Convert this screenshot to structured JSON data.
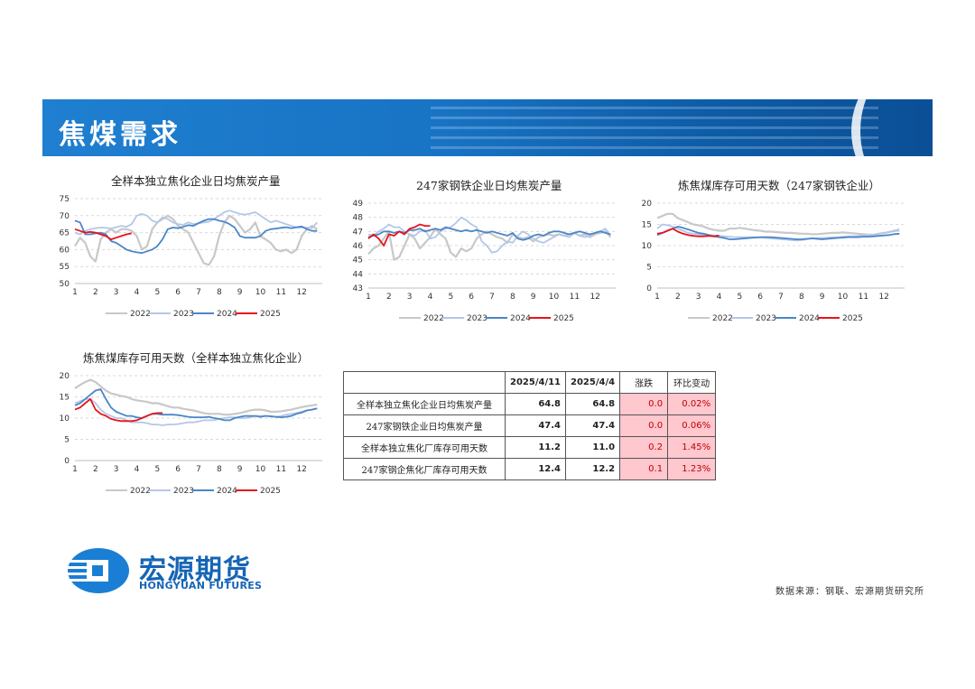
{
  "header": {
    "title": "焦煤需求"
  },
  "legend_labels": [
    "2022",
    "2023",
    "2024",
    "2025"
  ],
  "colors": {
    "2022": "#c8c8c8",
    "2023": "#b4c7e7",
    "2024": "#4a86c8",
    "2025": "#e8131a"
  },
  "chart_data": [
    {
      "type": "line",
      "title": "全样本独立焦化企业日均焦炭产量",
      "xticks": [
        "1",
        "2",
        "3",
        "4",
        "5",
        "6",
        "7",
        "8",
        "9",
        "10",
        "11",
        "12"
      ],
      "ylim": [
        50,
        75
      ],
      "yticks": [
        50,
        55,
        60,
        65,
        70,
        75
      ],
      "series": [
        {
          "name": "2022",
          "values": [
            61,
            63.5,
            62,
            58,
            56.5,
            63,
            65,
            66,
            65,
            66,
            66,
            65.5,
            64,
            60,
            61,
            66,
            68,
            69,
            70,
            69,
            67,
            66,
            65,
            62,
            59,
            56,
            55.5,
            58,
            64,
            68,
            70,
            69,
            67,
            65,
            66,
            68,
            64,
            63,
            62,
            60,
            59.5,
            60,
            59,
            60,
            64,
            66,
            67,
            66
          ]
        },
        {
          "name": "2023",
          "values": [
            65,
            64.5,
            65.5,
            66,
            66.3,
            66.5,
            66.4,
            66.2,
            66.6,
            67,
            66.7,
            67.5,
            70,
            70.5,
            70,
            68.5,
            68,
            69.5,
            69,
            68,
            67.5,
            67.3,
            68,
            67.5,
            67.7,
            68,
            68.2,
            69,
            70,
            71,
            71.5,
            71,
            70.5,
            70.3,
            70.6,
            71,
            70,
            69,
            68,
            68.5,
            68,
            67.5,
            67,
            66.5,
            66.5,
            66.5,
            66.3,
            68
          ]
        },
        {
          "name": "2024",
          "values": [
            68.5,
            68,
            64.5,
            64.5,
            64.8,
            65,
            64.5,
            62.5,
            62,
            61,
            60,
            59.5,
            59.2,
            59,
            59.5,
            60,
            61,
            63,
            66,
            66.5,
            66.3,
            66.7,
            67.2,
            67,
            67.8,
            68.5,
            69,
            69,
            68.5,
            68.2,
            67.5,
            66.5,
            64,
            63.5,
            63.5,
            63.5,
            64,
            65.5,
            66,
            66.2,
            66.4,
            66.6,
            66.3,
            66.6,
            66.8,
            66,
            65.5,
            65.5
          ]
        },
        {
          "name": "2025",
          "values": [
            66,
            65.5,
            65,
            65.2,
            65,
            64.5,
            64,
            63,
            63.5,
            64,
            64.5,
            64.8
          ]
        }
      ]
    },
    {
      "type": "line",
      "title": "247家钢铁企业日均焦炭产量",
      "xticks": [
        "1",
        "2",
        "3",
        "4",
        "5",
        "6",
        "7",
        "8",
        "9",
        "10",
        "11",
        "12"
      ],
      "ylim": [
        43,
        49
      ],
      "yticks": [
        43,
        44,
        45,
        46,
        47,
        48,
        49
      ],
      "series": [
        {
          "name": "2022",
          "values": [
            45.4,
            45.8,
            46,
            46.5,
            47,
            45,
            45.2,
            46,
            46.8,
            46.5,
            45.8,
            46.2,
            46.6,
            47.2,
            46.8,
            46.5,
            45.5,
            45.2,
            45.8,
            45.6,
            45.8,
            46.5,
            46.8,
            47,
            46.8,
            46.6,
            46.5,
            46.2,
            46.8,
            46.6,
            46.5,
            46.6,
            46.3,
            46.6,
            46.7,
            46.8,
            46.7,
            46.8,
            46.7,
            46.8,
            46.9,
            46.7,
            46.8,
            46.6,
            46.8,
            46.9,
            47,
            46.6
          ]
        },
        {
          "name": "2023",
          "values": [
            46.8,
            46.7,
            47,
            47.2,
            47.5,
            47.3,
            47.3,
            47,
            46.8,
            46.7,
            47,
            47.1,
            46.5,
            46.6,
            47,
            47.2,
            47.3,
            47.6,
            48,
            47.8,
            47.5,
            47.3,
            46.3,
            46,
            45.5,
            45.6,
            46,
            46.3,
            46.2,
            46.7,
            47,
            46.8,
            46.5,
            46.3,
            46.2,
            46.4,
            46.6,
            46.8,
            46.7,
            46.6,
            46.9,
            46.7,
            46.6,
            46.7,
            46.9,
            47,
            47.2,
            46.7
          ]
        },
        {
          "name": "2024",
          "values": [
            46.6,
            46.7,
            46.8,
            47,
            47,
            46.9,
            47,
            46.9,
            47.1,
            47.1,
            47.2,
            47,
            47.1,
            47.2,
            47.1,
            47.3,
            47.2,
            47.1,
            47,
            47.1,
            47,
            47.1,
            47,
            46.9,
            47,
            46.9,
            46.8,
            46.7,
            46.9,
            46.5,
            46.4,
            46.5,
            46.7,
            46.8,
            46.7,
            46.9,
            47,
            47,
            46.9,
            46.8,
            46.9,
            47,
            46.9,
            46.8,
            46.9,
            47,
            46.9,
            46.8
          ]
        },
        {
          "name": "2025",
          "values": [
            46.5,
            46.8,
            46.5,
            46,
            46.8,
            46.7,
            47,
            46.8,
            47.2,
            47.3,
            47.5,
            47.4,
            47.4
          ]
        }
      ]
    },
    {
      "type": "line",
      "title": "炼焦煤库存可用天数（247家钢铁企业）",
      "xticks": [
        "1",
        "2",
        "3",
        "4",
        "5",
        "6",
        "7",
        "8",
        "9",
        "10",
        "11",
        "12"
      ],
      "ylim": [
        0,
        20
      ],
      "yticks": [
        0,
        5,
        10,
        15,
        20
      ],
      "series": [
        {
          "name": "2022",
          "values": [
            16.5,
            17,
            17.5,
            17.5,
            16.5,
            16,
            15.5,
            15,
            14.8,
            14.5,
            14,
            13.7,
            13.5,
            13.5,
            14,
            14,
            14.2,
            14,
            13.8,
            13.6,
            13.5,
            13.3,
            13.3,
            13.2,
            13.1,
            13,
            13,
            12.9,
            12.8,
            12.8,
            12.7,
            12.7,
            12.8,
            12.9,
            13,
            13,
            13.1,
            13,
            12.9,
            12.8,
            12.7,
            12.6,
            12.6,
            12.8,
            13,
            13.2,
            13.5,
            13.8
          ]
        },
        {
          "name": "2023",
          "values": [
            14,
            15,
            14.8,
            14.5,
            14,
            13.5,
            13,
            12.8,
            12.7,
            12.6,
            12.5,
            12.4,
            12.3,
            12.2,
            12.1,
            12,
            12,
            12,
            12,
            12,
            11.9,
            11.8,
            11.7,
            11.6,
            11.5,
            11.4,
            11.3,
            11.2,
            11.3,
            11.5,
            11.7,
            11.8,
            11.8,
            11.9,
            12,
            12,
            12.1,
            12.2,
            12.2,
            12.3,
            12.4,
            12.5,
            12.6,
            12.8,
            13,
            13.2,
            13.4,
            13.5
          ]
        },
        {
          "name": "2024",
          "values": [
            12.5,
            13,
            13.5,
            14,
            14.5,
            14.2,
            13.8,
            13.4,
            13,
            12.8,
            12.5,
            12.2,
            12,
            11.8,
            11.5,
            11.5,
            11.6,
            11.7,
            11.8,
            11.9,
            12,
            12,
            12,
            11.9,
            11.8,
            11.7,
            11.6,
            11.5,
            11.5,
            11.6,
            11.7,
            11.6,
            11.5,
            11.6,
            11.7,
            11.8,
            11.9,
            12,
            12,
            12,
            12.1,
            12.1,
            12.2,
            12.3,
            12.4,
            12.5,
            12.7,
            12.8
          ]
        },
        {
          "name": "2025",
          "values": [
            12.8,
            13,
            13.5,
            14,
            13.3,
            12.8,
            12.5,
            12.3,
            12.2,
            12.2,
            12.3,
            12.2,
            12.4
          ]
        }
      ]
    },
    {
      "type": "line",
      "title": "炼焦煤库存可用天数（全样本独立焦化企业）",
      "xticks": [
        "1",
        "2",
        "3",
        "4",
        "5",
        "6",
        "7",
        "8",
        "9",
        "10",
        "11",
        "12"
      ],
      "ylim": [
        0,
        20
      ],
      "yticks": [
        0,
        5,
        10,
        15,
        20
      ],
      "series": [
        {
          "name": "2022",
          "values": [
            17,
            17.8,
            18.5,
            19,
            18.5,
            17.5,
            16.5,
            15.8,
            15.5,
            15.2,
            15,
            14.5,
            14.2,
            14,
            13.8,
            13.5,
            13.5,
            13.2,
            12.8,
            12.5,
            12.5,
            12.2,
            12,
            11.8,
            11.5,
            11.2,
            11,
            11,
            11,
            10.8,
            10.8,
            11,
            11.2,
            11.5,
            11.8,
            12,
            12,
            11.8,
            11.5,
            11.5,
            11.6,
            11.8,
            12,
            12.3,
            12.6,
            12.8,
            13,
            13.2
          ]
        },
        {
          "name": "2023",
          "values": [
            13.5,
            14,
            14.5,
            14.5,
            13.5,
            12,
            11,
            10.5,
            10,
            10,
            9.5,
            9,
            9,
            9,
            8.8,
            8.5,
            8.5,
            8.3,
            8.5,
            8.5,
            8.6,
            8.8,
            9,
            9,
            9.2,
            9.5,
            9.5,
            9.5,
            9.8,
            10,
            10.2,
            10.2,
            10,
            10,
            10.2,
            10.5,
            10.5,
            10.5,
            10.5,
            10.3,
            10.5,
            10.8,
            11,
            11.2,
            11.5,
            11.8,
            12,
            12.3
          ]
        },
        {
          "name": "2024",
          "values": [
            13,
            13.5,
            14.5,
            15.5,
            16.5,
            16.8,
            14.5,
            12.5,
            11.5,
            11,
            10.5,
            10.5,
            10.2,
            10,
            10.5,
            11,
            11,
            10.8,
            10.8,
            10.8,
            10.7,
            10.5,
            10.3,
            10.2,
            10.2,
            10.2,
            10.3,
            10,
            9.8,
            9.5,
            9.5,
            10,
            10.3,
            10.5,
            10.5,
            10.5,
            10.3,
            10.5,
            10.4,
            10.3,
            10.2,
            10.3,
            10.5,
            11,
            11.3,
            11.8,
            12,
            12.3
          ]
        },
        {
          "name": "2025",
          "values": [
            12,
            12.5,
            13.5,
            14.5,
            12,
            11,
            10.5,
            9.8,
            9.5,
            9.3,
            9.3,
            9.3,
            9.5,
            10,
            10.5,
            11,
            11.2,
            11.2
          ]
        }
      ]
    }
  ],
  "summary_table": {
    "headers": [
      "",
      "2025/4/11",
      "2025/4/4",
      "涨跌",
      "环比变动"
    ],
    "rows": [
      {
        "name": "全样本独立焦化企业日均焦炭产量",
        "current": "64.8",
        "previous": "64.8",
        "change": "0.0",
        "pct": "0.02%"
      },
      {
        "name": "247家钢铁企业日均焦炭产量",
        "current": "47.4",
        "previous": "47.4",
        "change": "0.0",
        "pct": "0.06%"
      },
      {
        "name": "全样本独立焦化厂库存可用天数",
        "current": "11.2",
        "previous": "11.0",
        "change": "0.2",
        "pct": "1.45%"
      },
      {
        "name": "247家钢企焦化厂库存可用天数",
        "current": "12.4",
        "previous": "12.2",
        "change": "0.1",
        "pct": "1.23%"
      }
    ]
  },
  "logo": {
    "cn": "宏源期货",
    "en": "HONGYUAN FUTURES"
  },
  "source": "数据来源：钢联、宏源期货研究所"
}
